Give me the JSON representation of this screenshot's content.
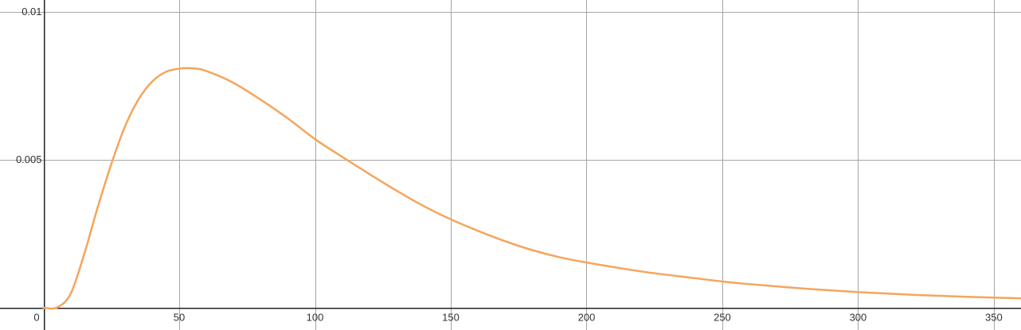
{
  "chart_data": {
    "type": "line",
    "title": "",
    "xlabel": "",
    "ylabel": "",
    "xlim": [
      -16,
      360
    ],
    "ylim": [
      -0.00075,
      0.0104
    ],
    "grid": true,
    "x_ticks": [
      {
        "value": 0,
        "label": "0"
      },
      {
        "value": 50,
        "label": "50"
      },
      {
        "value": 100,
        "label": "100"
      },
      {
        "value": 150,
        "label": "150"
      },
      {
        "value": 200,
        "label": "200"
      },
      {
        "value": 250,
        "label": "250"
      },
      {
        "value": 300,
        "label": "300"
      },
      {
        "value": 350,
        "label": "350"
      }
    ],
    "y_ticks": [
      {
        "value": 0.005,
        "label": "0.005"
      },
      {
        "value": 0.01,
        "label": "0.01"
      }
    ],
    "series": [
      {
        "color": "#f5a55c",
        "x": [
          0,
          5,
          10,
          15,
          20,
          25,
          30,
          35,
          40,
          45,
          50,
          55,
          60,
          70,
          80,
          90,
          100,
          110,
          120,
          130,
          140,
          150,
          160,
          170,
          180,
          190,
          200,
          220,
          240,
          250,
          260,
          280,
          300,
          320,
          340,
          360
        ],
        "y": [
          0.0,
          1e-05,
          0.00047,
          0.00181,
          0.0034,
          0.00486,
          0.00612,
          0.00704,
          0.00764,
          0.00797,
          0.00808,
          0.00809,
          0.008,
          0.0076,
          0.00703,
          0.0064,
          0.0057,
          0.0051,
          0.00452,
          0.00396,
          0.00344,
          0.00299,
          0.0026,
          0.00225,
          0.00195,
          0.00171,
          0.00153,
          0.00123,
          0.001,
          0.00089,
          0.0008,
          0.00065,
          0.00053,
          0.00044,
          0.00037,
          0.00032
        ]
      }
    ]
  }
}
